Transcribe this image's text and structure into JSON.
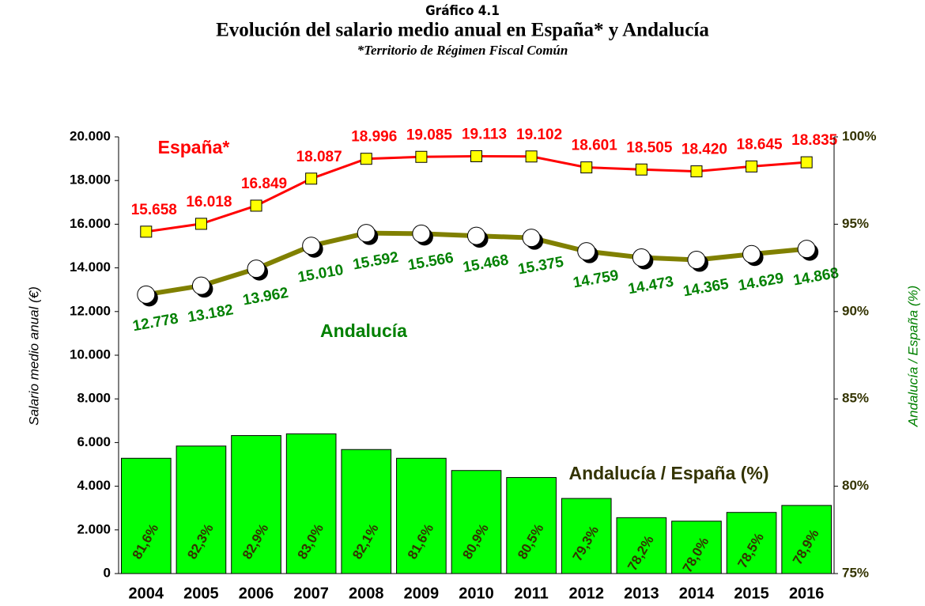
{
  "chart_data": {
    "type": "combo",
    "title": "Gráfico 4.1",
    "subtitle": "Evolución del salario medio anual en España* y Andalucía",
    "note": "*Territorio de Régimen Fiscal Común",
    "ylabel": "Salario medio anual (€)",
    "y2label": "Andalucía / España (%)",
    "categories": [
      "2004",
      "2005",
      "2006",
      "2007",
      "2008",
      "2009",
      "2010",
      "2011",
      "2012",
      "2013",
      "2014",
      "2015",
      "2016"
    ],
    "ylim": [
      0,
      20000
    ],
    "yticks": [
      0,
      {
        "value": 2000,
        "label": "2.000"
      },
      {
        "value": 4000,
        "label": "4.000"
      },
      {
        "value": 6000,
        "label": "6.000"
      },
      {
        "value": 8000,
        "label": "8.000"
      },
      {
        "value": 10000,
        "label": "10.000"
      },
      {
        "value": 12000,
        "label": "12.000"
      },
      {
        "value": 14000,
        "label": "14.000"
      },
      {
        "value": 16000,
        "label": "16.000"
      },
      {
        "value": 18000,
        "label": "18.000"
      },
      {
        "value": 20000,
        "label": "20.000"
      }
    ],
    "y2lim": [
      75,
      100
    ],
    "y2ticks": [
      {
        "value": 75,
        "label": "75%"
      },
      {
        "value": 80,
        "label": "80%"
      },
      {
        "value": 85,
        "label": "85%"
      },
      {
        "value": 90,
        "label": "90%"
      },
      {
        "value": 95,
        "label": "95%"
      },
      {
        "value": 100,
        "label": "100%"
      }
    ],
    "series": [
      {
        "name": "Andalucía / España (%)",
        "type": "bar",
        "axis": "y2",
        "color": "#00ff00",
        "label_color": "#333300",
        "values": [
          81.6,
          82.3,
          82.9,
          83.0,
          82.1,
          81.6,
          80.9,
          80.5,
          79.3,
          78.2,
          78.0,
          78.5,
          78.9
        ],
        "value_labels": [
          "81,6%",
          "82,3%",
          "82,9%",
          "83,0%",
          "82,1%",
          "81,6%",
          "80,9%",
          "80,5%",
          "79,3%",
          "78,2%",
          "78,0%",
          "78,5%",
          "78,9%"
        ]
      },
      {
        "name": "España*",
        "type": "line",
        "axis": "y",
        "color": "#ff0000",
        "marker_color": "#ffff00",
        "values": [
          15658,
          16018,
          16849,
          18087,
          18996,
          19085,
          19113,
          19102,
          18601,
          18505,
          18420,
          18645,
          18835
        ],
        "value_labels": [
          "15.658",
          "16.018",
          "16.849",
          "18.087",
          "18.996",
          "19.085",
          "19.113",
          "19.102",
          "18.601",
          "18.505",
          "18.420",
          "18.645",
          "18.835"
        ]
      },
      {
        "name": "Andalucía",
        "type": "line",
        "axis": "y",
        "color": "#808000",
        "label_color": "#008000",
        "marker_color": "#ffffff",
        "values": [
          12778,
          13182,
          13962,
          15010,
          15592,
          15566,
          15468,
          15375,
          14759,
          14473,
          14365,
          14629,
          14868
        ],
        "value_labels": [
          "12.778",
          "13.182",
          "13.962",
          "15.010",
          "15.592",
          "15.566",
          "15.468",
          "15.375",
          "14.759",
          "14.473",
          "14.365",
          "14.629",
          "14.868"
        ]
      }
    ]
  }
}
